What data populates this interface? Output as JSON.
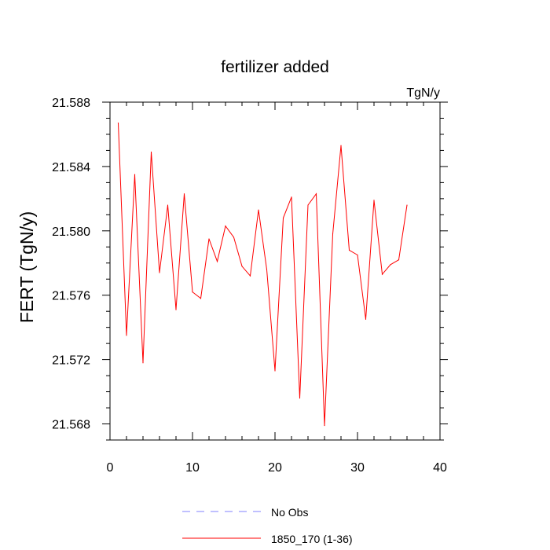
{
  "chart_data": {
    "type": "line",
    "title": "fertilizer added",
    "units_label": "TgN/y",
    "ylabel": "FERT  (TgN/y)",
    "xlabel": "",
    "xlim": [
      0,
      40
    ],
    "ylim": [
      21.567,
      21.588
    ],
    "x_ticks": [
      0,
      10,
      20,
      30,
      40
    ],
    "x_tick_labels": [
      "0",
      "10",
      "20",
      "30",
      "40"
    ],
    "y_ticks": [
      21.568,
      21.572,
      21.576,
      21.58,
      21.584,
      21.588
    ],
    "y_tick_labels": [
      "21.568",
      "21.572",
      "21.576",
      "21.580",
      "21.584",
      "21.588"
    ],
    "legend": [
      {
        "label": "No Obs",
        "color": "#8080ff",
        "dash": true
      },
      {
        "label": "1850_170 (1-36)",
        "color": "#ff0000",
        "dash": false
      }
    ],
    "series": [
      {
        "name": "1850_170 (1-36)",
        "color": "#ff0000",
        "x": [
          1,
          2,
          3,
          4,
          5,
          6,
          7,
          8,
          9,
          10,
          11,
          12,
          13,
          14,
          15,
          16,
          17,
          18,
          19,
          20,
          21,
          22,
          23,
          24,
          25,
          26,
          27,
          28,
          29,
          30,
          31,
          32,
          33,
          34,
          35,
          36
        ],
        "values": [
          21.5867,
          21.5735,
          21.5835,
          21.5718,
          21.5849,
          21.5774,
          21.5816,
          21.5751,
          21.5823,
          21.5762,
          21.5758,
          21.5795,
          21.5781,
          21.5803,
          21.5796,
          21.5778,
          21.5772,
          21.5813,
          21.5776,
          21.5713,
          21.5808,
          21.5821,
          21.5696,
          21.5816,
          21.5823,
          21.5679,
          21.5798,
          21.5853,
          21.5788,
          21.5785,
          21.5745,
          21.5819,
          21.5773,
          21.5779,
          21.5782,
          21.5816
        ]
      }
    ]
  }
}
